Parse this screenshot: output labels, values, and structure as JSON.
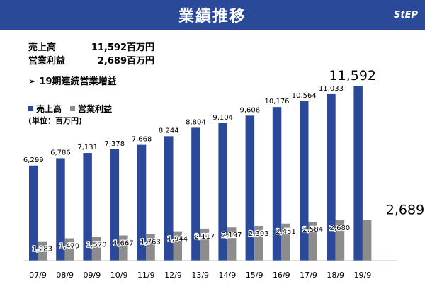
{
  "header": {
    "title": "業績推移",
    "logo": "StEP"
  },
  "summary": {
    "rows": [
      {
        "label": "売上高",
        "value": "11,592百万円"
      },
      {
        "label": "営業利益",
        "value": "2,689百万円"
      }
    ],
    "bullet": "➢ 19期連続営業増益"
  },
  "legend": {
    "items": [
      {
        "name": "売上高",
        "color": "#2a4a99"
      },
      {
        "name": "営業利益",
        "color": "#8c8c8c"
      }
    ],
    "unit": "(単位：百万円)"
  },
  "chart_data": {
    "type": "bar",
    "categories": [
      "07/9",
      "08/9",
      "09/9",
      "10/9",
      "11/9",
      "12/9",
      "13/9",
      "14/9",
      "15/9",
      "16/9",
      "17/9",
      "18/9",
      "19/9"
    ],
    "series": [
      {
        "name": "売上高",
        "color": "#2a4a99",
        "values": [
          6299,
          6786,
          7131,
          7378,
          7668,
          8244,
          8804,
          9104,
          9606,
          10176,
          10564,
          11033,
          11592
        ],
        "labels": [
          "6,299",
          "6,786",
          "7,131",
          "7,378",
          "7,668",
          "8,244",
          "8,804",
          "9,104",
          "9,606",
          "10,176",
          "10,564",
          "11,033",
          "11,592"
        ]
      },
      {
        "name": "営業利益",
        "color": "#8c8c8c",
        "values": [
          1283,
          1479,
          1570,
          1667,
          1763,
          1944,
          2117,
          2197,
          2303,
          2451,
          2584,
          2680,
          2689
        ],
        "labels": [
          "1,283",
          "1,479",
          "1,570",
          "1,667",
          "1,763",
          "1,944",
          "2,117",
          "2,197",
          "2,303",
          "2,451",
          "2,584",
          "2,680",
          "2,689"
        ]
      }
    ],
    "ylim": [
      0,
      11592
    ],
    "grid": false,
    "legend_position": "top-left"
  }
}
